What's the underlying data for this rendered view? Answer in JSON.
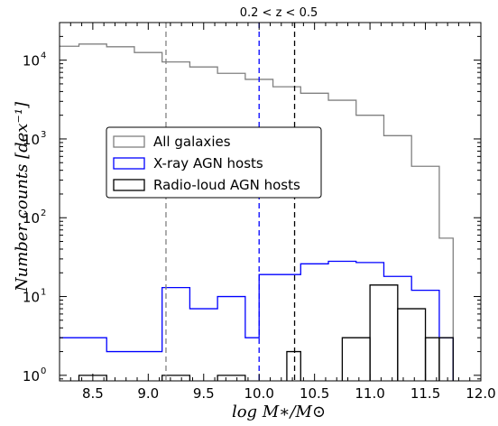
{
  "chart_data": {
    "type": "histogram",
    "title": "0.2 < z < 0.5",
    "xlabel": "log M∗/M⊙",
    "ylabel": "Number counts [dex⁻¹]",
    "x_scale": "linear",
    "y_scale": "log",
    "xlim": [
      8.2,
      12.0
    ],
    "ylim": [
      0.85,
      30000
    ],
    "x_ticks": [
      "8.5",
      "9.0",
      "9.5",
      "10.0",
      "10.5",
      "11.0",
      "11.5",
      "12.0"
    ],
    "y_tick_exponents": [
      "0",
      "1",
      "2",
      "3",
      "4"
    ],
    "legend_position": "center-left",
    "bin_edges": [
      8.2,
      8.375,
      8.625,
      8.875,
      9.125,
      9.375,
      9.625,
      9.875,
      10.0,
      10.125,
      10.375,
      10.625,
      10.875,
      11.125,
      11.375,
      11.625,
      11.75
    ],
    "series": [
      {
        "name": "All galaxies",
        "color": "#808080",
        "edges": [
          8.2,
          8.375,
          8.625,
          8.875,
          9.125,
          9.375,
          9.625,
          9.875,
          10.125,
          10.375,
          10.625,
          10.875,
          11.125,
          11.375,
          11.625,
          11.75
        ],
        "values": [
          15000,
          16000,
          14800,
          12500,
          9500,
          8200,
          6800,
          5700,
          4600,
          3800,
          3100,
          2000,
          1100,
          450,
          55
        ]
      },
      {
        "name": "X-ray AGN hosts",
        "color": "#0000ff",
        "edges": [
          8.2,
          8.375,
          8.625,
          8.875,
          9.125,
          9.375,
          9.625,
          9.875,
          10.0,
          10.125,
          10.375,
          10.625,
          10.875,
          11.125,
          11.375,
          11.625,
          11.75
        ],
        "values": [
          3,
          3,
          2,
          2,
          13,
          7,
          10,
          3,
          19,
          19,
          26,
          28,
          27,
          18,
          12,
          3
        ]
      },
      {
        "name": "Radio-loud AGN hosts",
        "color": "#000000",
        "segments": [
          {
            "x0": 8.375,
            "x1": 8.625,
            "value": 1
          },
          {
            "x0": 9.125,
            "x1": 9.375,
            "value": 1
          },
          {
            "x0": 9.625,
            "x1": 9.875,
            "value": 1
          },
          {
            "x0": 10.25,
            "x1": 10.375,
            "value": 2
          },
          {
            "x0": 10.75,
            "x1": 11.0,
            "value": 3
          },
          {
            "x0": 11.0,
            "x1": 11.25,
            "value": 14
          },
          {
            "x0": 11.25,
            "x1": 11.5,
            "value": 7
          },
          {
            "x0": 11.5,
            "x1": 11.625,
            "value": 3
          },
          {
            "x0": 11.625,
            "x1": 11.75,
            "value": 3
          }
        ]
      }
    ],
    "vlines": [
      {
        "x": 9.16,
        "color": "#808080",
        "style": "dashed"
      },
      {
        "x": 10.0,
        "color": "#0000ff",
        "style": "dashed"
      },
      {
        "x": 10.32,
        "color": "#000000",
        "style": "dashed"
      }
    ]
  }
}
